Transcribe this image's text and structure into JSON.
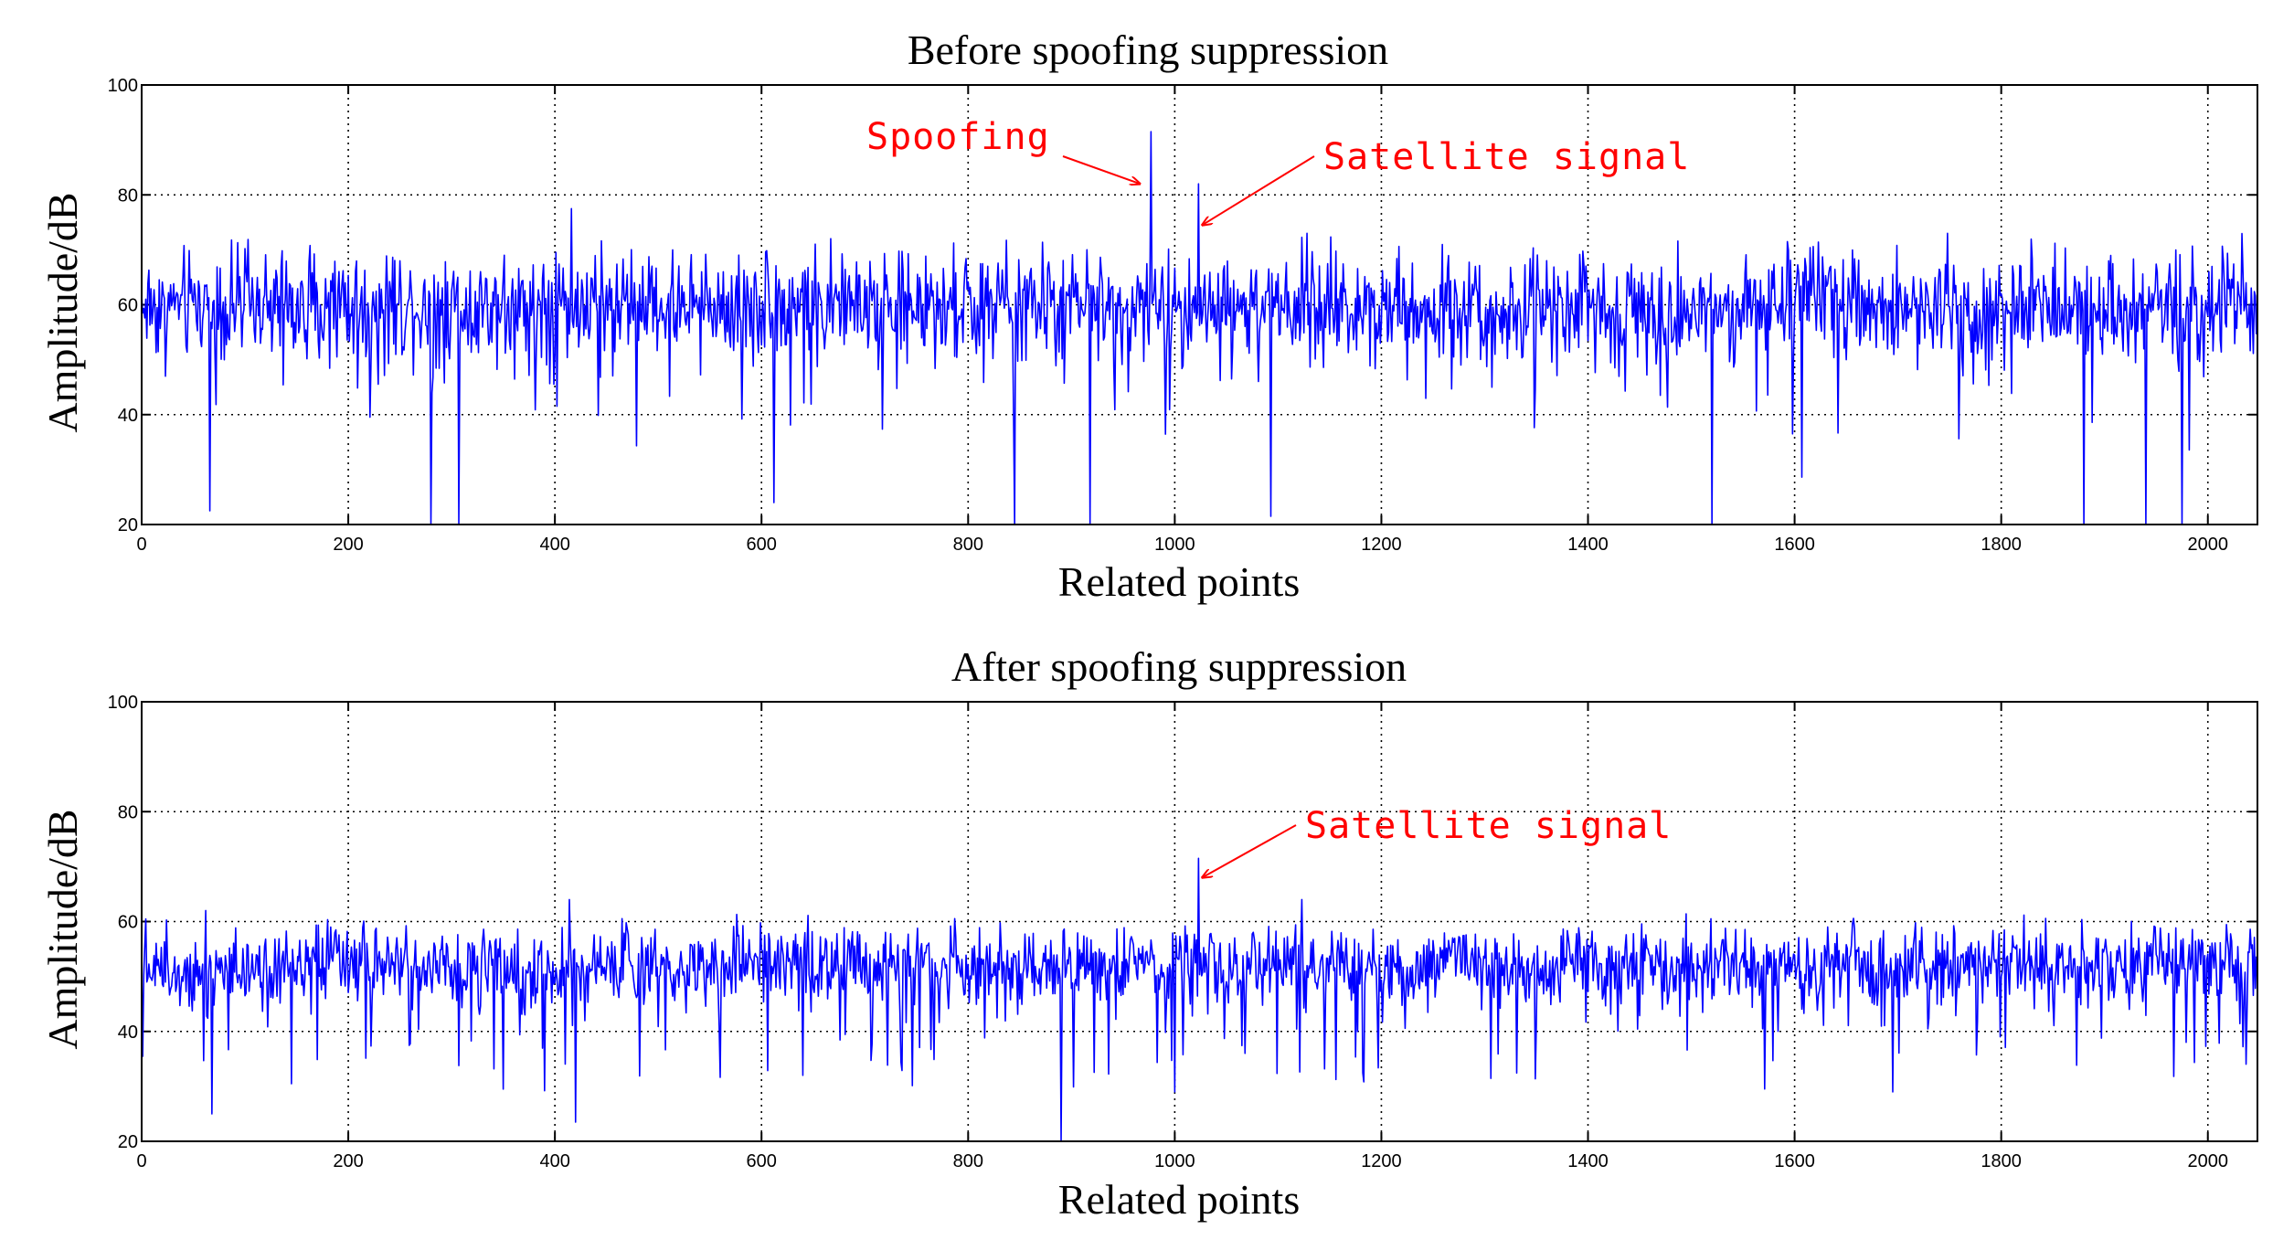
{
  "chart_data": [
    {
      "type": "line",
      "title": "Before spoofing suppression",
      "xlabel": "Related points",
      "ylabel": "Amplitude/dB",
      "xlim": [
        0,
        2048
      ],
      "ylim": [
        20,
        100
      ],
      "xticks": [
        0,
        200,
        400,
        600,
        800,
        1000,
        1200,
        1400,
        1600,
        1800,
        2000
      ],
      "yticks": [
        20,
        40,
        60,
        80,
        100
      ],
      "grid": true,
      "line_color": "#0000FF",
      "noise_profile": {
        "points": 2048,
        "baseline_db": 60,
        "spread_db": 6,
        "min_db": 20,
        "max_db": 73
      },
      "series": [
        {
          "name": "Amplitude",
          "peaks": [
            {
              "x": 977,
              "y": 91.5
            },
            {
              "x": 1023,
              "y": 82
            },
            {
              "x": 416,
              "y": 77.5
            },
            {
              "x": 280,
              "y": 20
            },
            {
              "x": 307,
              "y": 20
            },
            {
              "x": 845,
              "y": 20
            },
            {
              "x": 918,
              "y": 20
            },
            {
              "x": 1520,
              "y": 20
            },
            {
              "x": 1880,
              "y": 20
            },
            {
              "x": 1940,
              "y": 20
            },
            {
              "x": 1975,
              "y": 20
            },
            {
              "x": 66,
              "y": 22.5
            },
            {
              "x": 612,
              "y": 24
            },
            {
              "x": 1093,
              "y": 21.5
            }
          ]
        }
      ],
      "annotations": [
        {
          "text": "Spoofing",
          "target_x": 977,
          "target_y": 82,
          "color": "#FF0000"
        },
        {
          "text": "Satellite signal",
          "target_x": 1023,
          "target_y": 74.5,
          "color": "#FF0000"
        }
      ]
    },
    {
      "type": "line",
      "title": "After spoofing suppression",
      "xlabel": "Related points",
      "ylabel": "Amplitude/dB",
      "xlim": [
        0,
        2048
      ],
      "ylim": [
        20,
        100
      ],
      "xticks": [
        0,
        200,
        400,
        600,
        800,
        1000,
        1200,
        1400,
        1600,
        1800,
        2000
      ],
      "yticks": [
        20,
        40,
        60,
        80,
        100
      ],
      "grid": true,
      "line_color": "#0000FF",
      "noise_profile": {
        "points": 2048,
        "baseline_db": 52,
        "spread_db": 4.5,
        "min_db": 28,
        "max_db": 62
      },
      "series": [
        {
          "name": "Amplitude",
          "peaks": [
            {
              "x": 1023,
              "y": 71.5
            },
            {
              "x": 1123,
              "y": 64
            },
            {
              "x": 414,
              "y": 64
            },
            {
              "x": 890,
              "y": 20
            },
            {
              "x": 68,
              "y": 25
            },
            {
              "x": 420,
              "y": 23.5
            },
            {
              "x": 1695,
              "y": 29
            },
            {
              "x": 1000,
              "y": 29
            },
            {
              "x": 350,
              "y": 29.5
            }
          ]
        }
      ],
      "annotations": [
        {
          "text": "Satellite signal",
          "target_x": 1023,
          "target_y": 68,
          "color": "#FF0000"
        }
      ]
    }
  ]
}
